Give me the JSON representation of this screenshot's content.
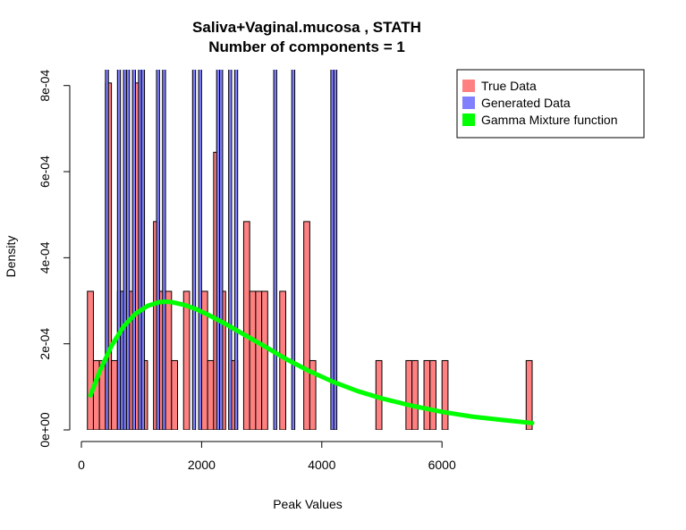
{
  "chart_data": {
    "type": "bar",
    "title": "Saliva+Vaginal.mucosa , STATH",
    "subtitle": "Number of components =  1",
    "xlabel": "Peak Values",
    "ylabel": "Density",
    "xlim": [
      0,
      7600
    ],
    "ylim": [
      0,
      0.00081
    ],
    "x_ticks": [
      0,
      2000,
      4000,
      6000
    ],
    "x_tick_labels": [
      "0",
      "2000",
      "4000",
      "6000"
    ],
    "y_ticks": [
      0,
      0.0002,
      0.0004,
      0.0006,
      0.0008
    ],
    "y_tick_labels": [
      "0e+00",
      "2e-04",
      "4e-04",
      "6e-04",
      "8e-04"
    ],
    "legend": {
      "position": "top-right",
      "entries": [
        {
          "label": "True Data",
          "color": "#FF8080"
        },
        {
          "label": "Generated Data",
          "color": "#8080FF"
        },
        {
          "label": "Gamma Mixture function",
          "color": "#00FF00"
        }
      ]
    },
    "series": [
      {
        "name": "True Data",
        "color": "#FF8080",
        "bin_width": 100,
        "bins": [
          {
            "x": 100,
            "y": 0.000322
          },
          {
            "x": 200,
            "y": 0.000161
          },
          {
            "x": 300,
            "y": 0.000161
          },
          {
            "x": 400,
            "y": 0.000806
          },
          {
            "x": 500,
            "y": 0.000161
          },
          {
            "x": 600,
            "y": 0.000322
          },
          {
            "x": 700,
            "y": 0.000161
          },
          {
            "x": 800,
            "y": 0.000322
          },
          {
            "x": 900,
            "y": 0.000806
          },
          {
            "x": 1000,
            "y": 0.000161
          },
          {
            "x": 1200,
            "y": 0.000484
          },
          {
            "x": 1300,
            "y": 0.000322
          },
          {
            "x": 1400,
            "y": 0.000322
          },
          {
            "x": 1500,
            "y": 0.000161
          },
          {
            "x": 1700,
            "y": 0.000322
          },
          {
            "x": 2000,
            "y": 0.000322
          },
          {
            "x": 2100,
            "y": 0.000161
          },
          {
            "x": 2200,
            "y": 0.000645
          },
          {
            "x": 2300,
            "y": 0.000322
          },
          {
            "x": 2500,
            "y": 0.000161
          },
          {
            "x": 2700,
            "y": 0.000484
          },
          {
            "x": 2800,
            "y": 0.000322
          },
          {
            "x": 2900,
            "y": 0.000322
          },
          {
            "x": 3000,
            "y": 0.000322
          },
          {
            "x": 3300,
            "y": 0.000322
          },
          {
            "x": 3700,
            "y": 0.000484
          },
          {
            "x": 3800,
            "y": 0.000161
          },
          {
            "x": 4900,
            "y": 0.000161
          },
          {
            "x": 5400,
            "y": 0.000161
          },
          {
            "x": 5500,
            "y": 0.000161
          },
          {
            "x": 5700,
            "y": 0.000161
          },
          {
            "x": 5800,
            "y": 0.000161
          },
          {
            "x": 6000,
            "y": 0.000161
          },
          {
            "x": 7400,
            "y": 0.000161
          }
        ]
      },
      {
        "name": "Generated Data",
        "color": "#8080FF",
        "bin_width": 50,
        "bins": [
          {
            "x": 400,
            "y": 0.00085
          },
          {
            "x": 600,
            "y": 0.00085
          },
          {
            "x": 650,
            "y": 0.000322
          },
          {
            "x": 700,
            "y": 0.00085
          },
          {
            "x": 750,
            "y": 0.00085
          },
          {
            "x": 850,
            "y": 0.00085
          },
          {
            "x": 950,
            "y": 0.00085
          },
          {
            "x": 1000,
            "y": 0.00085
          },
          {
            "x": 1250,
            "y": 0.00085
          },
          {
            "x": 1350,
            "y": 0.00085
          },
          {
            "x": 1850,
            "y": 0.00085
          },
          {
            "x": 1950,
            "y": 0.00085
          },
          {
            "x": 2250,
            "y": 0.00085
          },
          {
            "x": 2300,
            "y": 0.00085
          },
          {
            "x": 2450,
            "y": 0.00085
          },
          {
            "x": 2550,
            "y": 0.00085
          },
          {
            "x": 3200,
            "y": 0.00085
          },
          {
            "x": 3500,
            "y": 0.00085
          },
          {
            "x": 4150,
            "y": 0.00085
          },
          {
            "x": 4200,
            "y": 0.00085
          }
        ]
      },
      {
        "name": "Gamma Mixture function",
        "color": "#00FF00",
        "type": "line",
        "x": [
          150,
          300,
          500,
          700,
          900,
          1100,
          1300,
          1400,
          1500,
          1700,
          1900,
          2100,
          2400,
          2700,
          3000,
          3400,
          3800,
          4200,
          4600,
          5000,
          5500,
          6000,
          6500,
          7000,
          7500
        ],
        "y": [
          8e-05,
          0.000135,
          0.000195,
          0.00024,
          0.00027,
          0.000288,
          0.000297,
          0.000298,
          0.000297,
          0.000291,
          0.000281,
          0.000268,
          0.000246,
          0.000222,
          0.000198,
          0.000165,
          0.000136,
          0.000111,
          9e-05,
          7.3e-05,
          5.6e-05,
          4.2e-05,
          3.1e-05,
          2.3e-05,
          1.6e-05
        ]
      }
    ]
  }
}
